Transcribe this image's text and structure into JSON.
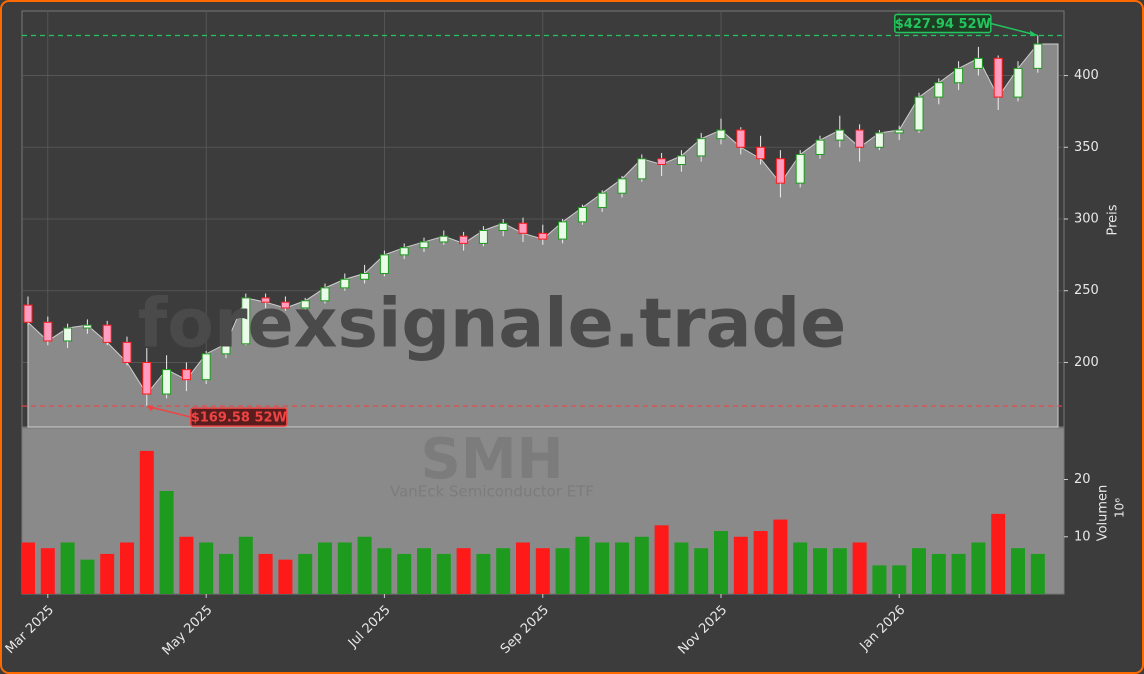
{
  "chart_data": {
    "type": "candlestick",
    "watermark": "forexsignale.trade",
    "symbol": "SMH",
    "subtitle": "VanEck Semiconductor ETF",
    "ylabel": "Preis",
    "y2label": "Volumen",
    "volume_scale": "10⁶",
    "categories": [
      null,
      "Mar 2025",
      null,
      null,
      null,
      null,
      null,
      null,
      null,
      "May 2025",
      null,
      null,
      null,
      null,
      null,
      null,
      null,
      null,
      "Jul 2025",
      null,
      null,
      null,
      null,
      null,
      null,
      null,
      "Sep 2025",
      null,
      null,
      null,
      null,
      null,
      null,
      null,
      null,
      "Nov 2025",
      null,
      null,
      null,
      null,
      null,
      null,
      null,
      null,
      "Jan 2026",
      null,
      null,
      null,
      null,
      null,
      null,
      null
    ],
    "open": [
      240,
      228,
      215,
      224,
      226,
      214,
      200,
      178,
      195,
      188,
      206,
      213,
      245,
      242,
      238,
      243,
      252,
      258,
      262,
      275,
      280,
      284,
      288,
      283,
      292,
      297,
      290,
      286,
      298,
      308,
      318,
      328,
      342,
      338,
      344,
      356,
      362,
      350,
      342,
      325,
      345,
      355,
      362,
      350,
      360,
      362,
      385,
      395,
      405,
      412,
      385,
      405
    ],
    "high": [
      246,
      232,
      227,
      230,
      229,
      218,
      210,
      205,
      200,
      208,
      215,
      248,
      248,
      246,
      245,
      255,
      262,
      268,
      278,
      283,
      287,
      292,
      291,
      295,
      300,
      301,
      296,
      300,
      310,
      320,
      330,
      345,
      346,
      348,
      360,
      370,
      364,
      358,
      348,
      348,
      358,
      372,
      366,
      362,
      365,
      388,
      398,
      410,
      420,
      414,
      410,
      427.94
    ],
    "low": [
      226,
      212,
      210,
      220,
      212,
      198,
      169.58,
      175,
      180,
      185,
      203,
      212,
      238,
      236,
      234,
      241,
      250,
      255,
      260,
      272,
      277,
      282,
      278,
      281,
      288,
      284,
      282,
      283,
      296,
      305,
      315,
      326,
      330,
      333,
      340,
      352,
      345,
      338,
      315,
      322,
      342,
      350,
      340,
      348,
      355,
      360,
      380,
      390,
      400,
      376,
      382,
      402
    ],
    "close": [
      228,
      215,
      224,
      226,
      214,
      200,
      178,
      195,
      188,
      206,
      213,
      245,
      242,
      238,
      243,
      252,
      258,
      262,
      275,
      280,
      284,
      288,
      283,
      292,
      297,
      290,
      286,
      298,
      308,
      318,
      328,
      342,
      338,
      344,
      356,
      362,
      350,
      342,
      325,
      345,
      355,
      362,
      350,
      360,
      362,
      385,
      395,
      405,
      412,
      385,
      405,
      422
    ],
    "volume": [
      9,
      8,
      9,
      6,
      7,
      9,
      25,
      18,
      10,
      9,
      7,
      10,
      7,
      6,
      7,
      9,
      9,
      10,
      8,
      7,
      8,
      7,
      8,
      7,
      8,
      9,
      8,
      8,
      10,
      9,
      9,
      10,
      12,
      9,
      8,
      11,
      10,
      11,
      13,
      9,
      8,
      8,
      9,
      5,
      5,
      8,
      7,
      7,
      9,
      14,
      8,
      7
    ],
    "up_color": "#1e9b1e",
    "down_color": "#ff1a1a",
    "ylim": [
      155,
      445
    ],
    "yticks": [
      200,
      250,
      300,
      350,
      400
    ],
    "y2lim": [
      0,
      29
    ],
    "y2ticks": [
      10,
      20
    ],
    "grid": true,
    "annotations": [
      {
        "text": "$427.94 52W",
        "value": 427.94,
        "color": "#22c55e"
      },
      {
        "text": "$169.58 52W",
        "value": 169.58,
        "color": "#ef4444"
      }
    ]
  }
}
